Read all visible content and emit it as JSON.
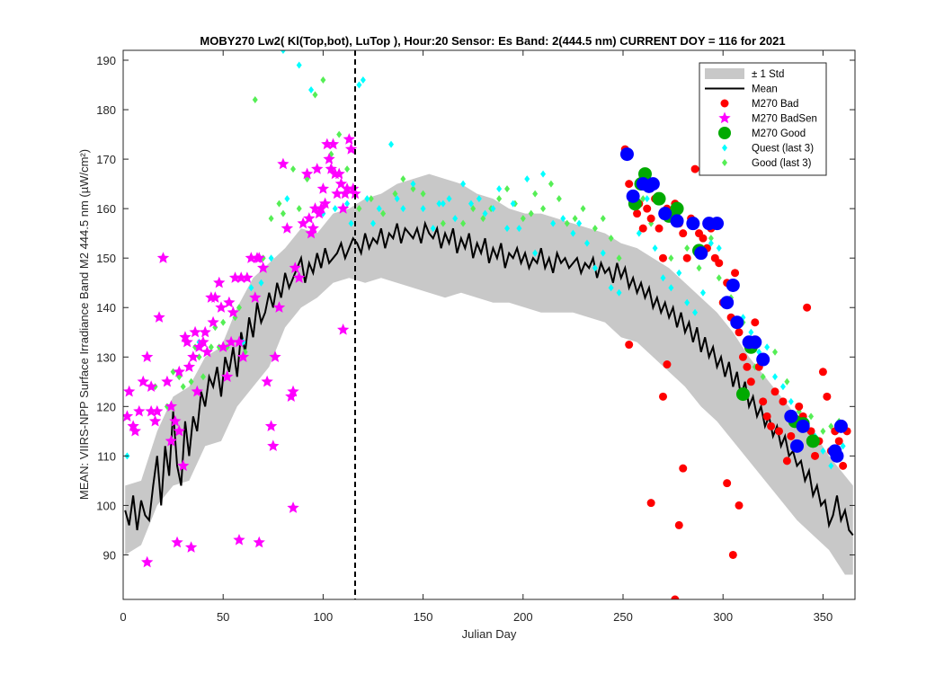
{
  "chart_data": {
    "type": "scatter",
    "title": "MOBY270   Lw2( Kl(Top,bot), LuTop ),   Hour:20 Sensor: Es Band: 2(444.5 nm)   CURRENT DOY = 116 for 2021",
    "xlabel": "Julian Day",
    "ylabel": "MEAN: VIIRS-NPP Surface Irradiance Band M2 444.5 nm (µW/cm²)",
    "xlim": [
      0,
      366
    ],
    "ylim": [
      81,
      192
    ],
    "xticks": [
      0,
      50,
      100,
      150,
      200,
      250,
      300,
      350
    ],
    "yticks": [
      90,
      100,
      110,
      120,
      130,
      140,
      150,
      160,
      170,
      180,
      190
    ],
    "grid": false,
    "legend_position": "top-right",
    "current_doy": 116,
    "colors": {
      "mean": "#000000",
      "std_band": "#c8c8c8",
      "m270_bad": "#ff0000",
      "m270_badsen": "#ff00ff",
      "m270_good": "#00aa00",
      "m270_good_alt": "#0000ff",
      "quest": "#00ffff",
      "good_last3": "#55ee55"
    },
    "legend": [
      {
        "label": "± 1 Std",
        "marker": "band"
      },
      {
        "label": "Mean",
        "marker": "line"
      },
      {
        "label": "M270 Bad",
        "marker": "dot-red"
      },
      {
        "label": "M270 BadSen",
        "marker": "star-magenta"
      },
      {
        "label": "M270 Good",
        "marker": "dot-green"
      },
      {
        "label": "Quest (last 3)",
        "marker": "diamond-cyan"
      },
      {
        "label": "Good (last 3)",
        "marker": "diamond-green"
      }
    ],
    "mean_series": {
      "name": "Mean",
      "x": [
        1,
        3,
        5,
        7,
        9,
        11,
        13,
        15,
        17,
        19,
        21,
        23,
        25,
        27,
        29,
        31,
        33,
        35,
        37,
        39,
        41,
        43,
        45,
        47,
        49,
        51,
        53,
        55,
        57,
        59,
        61,
        63,
        65,
        67,
        69,
        71,
        73,
        75,
        77,
        79,
        81,
        83,
        85,
        87,
        89,
        91,
        93,
        95,
        97,
        99,
        101,
        103,
        105,
        107,
        109,
        111,
        113,
        115,
        117,
        119,
        121,
        123,
        125,
        127,
        129,
        131,
        133,
        135,
        137,
        139,
        141,
        143,
        145,
        147,
        149,
        151,
        153,
        155,
        157,
        159,
        161,
        163,
        165,
        167,
        169,
        171,
        173,
        175,
        177,
        179,
        181,
        183,
        185,
        187,
        189,
        191,
        193,
        195,
        197,
        199,
        201,
        203,
        205,
        207,
        209,
        211,
        213,
        215,
        217,
        219,
        221,
        223,
        225,
        227,
        229,
        231,
        233,
        235,
        237,
        239,
        241,
        243,
        245,
        247,
        249,
        251,
        253,
        255,
        257,
        259,
        261,
        263,
        265,
        267,
        269,
        271,
        273,
        275,
        277,
        279,
        281,
        283,
        285,
        287,
        289,
        291,
        293,
        295,
        297,
        299,
        301,
        303,
        305,
        307,
        309,
        311,
        313,
        315,
        317,
        319,
        321,
        323,
        325,
        327,
        329,
        331,
        333,
        335,
        337,
        339,
        341,
        343,
        345,
        347,
        349,
        351,
        353,
        355,
        357,
        359,
        361,
        363,
        365
      ],
      "y": [
        99,
        96,
        102,
        95,
        101,
        98,
        97,
        104,
        110,
        100,
        112,
        106,
        119,
        108,
        104,
        117,
        110,
        118,
        115,
        123,
        120,
        126,
        124,
        128,
        122,
        130,
        127,
        132,
        126,
        135,
        131,
        138,
        134,
        141,
        137,
        139,
        143,
        140,
        145,
        142,
        147,
        144,
        146,
        148,
        150,
        145,
        149,
        147,
        151,
        148,
        152,
        149,
        150,
        151,
        153,
        150,
        152,
        154,
        153,
        151,
        155,
        152,
        154,
        153,
        156,
        152,
        155,
        154,
        157,
        153,
        156,
        155,
        154,
        156,
        153,
        157,
        155,
        154,
        156,
        152,
        155,
        153,
        156,
        151,
        154,
        152,
        155,
        150,
        153,
        151,
        154,
        149,
        152,
        150,
        153,
        148,
        151,
        150,
        152,
        149,
        151,
        148,
        150,
        149,
        152,
        148,
        150,
        147,
        151,
        149,
        150,
        148,
        149,
        150,
        147,
        149,
        148,
        150,
        146,
        149,
        147,
        148,
        145,
        149,
        146,
        148,
        144,
        146,
        143,
        145,
        142,
        144,
        140,
        142,
        139,
        141,
        138,
        140,
        136,
        139,
        135,
        137,
        133,
        136,
        131,
        134,
        130,
        132,
        128,
        130,
        126,
        129,
        124,
        127,
        122,
        125,
        120,
        122,
        118,
        120,
        116,
        118,
        114,
        116,
        112,
        114,
        110,
        111,
        108,
        109,
        105,
        107,
        102,
        104,
        100,
        101,
        96,
        98,
        102,
        97,
        99,
        95,
        94
      ]
    },
    "std_band": {
      "name": "± 1 Std",
      "x": [
        1,
        9,
        17,
        25,
        33,
        41,
        49,
        57,
        65,
        73,
        81,
        89,
        97,
        105,
        113,
        121,
        129,
        137,
        145,
        153,
        161,
        169,
        177,
        185,
        193,
        201,
        209,
        217,
        225,
        233,
        241,
        249,
        257,
        265,
        273,
        281,
        289,
        297,
        305,
        313,
        321,
        329,
        337,
        345,
        353,
        361,
        365
      ],
      "upper": [
        104,
        105,
        115,
        122,
        124,
        130,
        132,
        140,
        146,
        149,
        152,
        156,
        155,
        159,
        160,
        162,
        163,
        165,
        166,
        167,
        166,
        165,
        163,
        162,
        160,
        159,
        159,
        158,
        157,
        156,
        155,
        153,
        152,
        150,
        148,
        145,
        142,
        139,
        135,
        130,
        126,
        122,
        118,
        115,
        110,
        106,
        104
      ],
      "lower": [
        90,
        92,
        100,
        104,
        105,
        112,
        113,
        120,
        124,
        128,
        136,
        140,
        142,
        145,
        146,
        145,
        146,
        145,
        144,
        143,
        142,
        143,
        142,
        141,
        141,
        140,
        139,
        139,
        139,
        138,
        137,
        134,
        133,
        130,
        127,
        124,
        120,
        117,
        113,
        109,
        105,
        101,
        97,
        94,
        91,
        86,
        86
      ]
    },
    "m270_bad": {
      "name": "M270 Bad",
      "x": [
        251,
        253,
        255,
        257,
        258,
        260,
        262,
        264,
        266,
        268,
        270,
        272,
        274,
        276,
        278,
        280,
        282,
        284,
        286,
        288,
        290,
        292,
        294,
        296,
        298,
        300,
        302,
        304,
        306,
        308,
        310,
        312,
        314,
        316,
        318,
        320,
        322,
        324,
        326,
        328,
        330,
        332,
        334,
        336,
        338,
        340,
        342,
        344,
        346,
        348,
        350,
        352,
        354,
        356,
        358,
        360,
        362,
        253,
        264,
        270,
        272,
        276,
        278,
        280,
        302,
        305,
        308
      ],
      "y": [
        172,
        165,
        163,
        159,
        161,
        156,
        160,
        158,
        162,
        156,
        150,
        160,
        159,
        161,
        157,
        155,
        150,
        158,
        168,
        155,
        154,
        152,
        156,
        150,
        149,
        141,
        145,
        138,
        147,
        135,
        130,
        128,
        125,
        137,
        128,
        121,
        118,
        116,
        123,
        115,
        121,
        109,
        114,
        112,
        120,
        118,
        140,
        115,
        110,
        113,
        127,
        122,
        111,
        115,
        113,
        108,
        115,
        132.5,
        100.5,
        122,
        128.5,
        81,
        96,
        107.5,
        104.5,
        90,
        100
      ]
    },
    "m270_badsen": {
      "name": "M270 BadSen",
      "x": [
        2,
        3,
        5,
        6,
        8,
        10,
        12,
        14,
        16,
        17,
        18,
        20,
        22,
        24,
        26,
        27,
        28,
        30,
        31,
        32,
        33,
        35,
        36,
        37,
        38,
        40,
        41,
        42,
        44,
        45,
        46,
        48,
        49,
        50,
        52,
        53,
        54,
        55,
        56,
        58,
        59,
        60,
        62,
        64,
        66,
        67,
        68,
        70,
        72,
        74,
        75,
        76,
        78,
        80,
        82,
        84,
        85,
        86,
        88,
        90,
        92,
        93,
        94,
        95,
        96,
        97,
        98,
        99,
        100,
        101,
        102,
        103,
        104,
        105,
        106,
        107,
        108,
        109,
        110,
        111,
        112,
        113,
        114,
        115,
        116,
        12,
        14,
        24,
        28,
        34,
        58,
        68,
        85,
        110
      ],
      "y": [
        118,
        123,
        116,
        115,
        119,
        125,
        130,
        124,
        117,
        119,
        138,
        150,
        125,
        113,
        117,
        92.5,
        127,
        108,
        134,
        133,
        128,
        130,
        135,
        123,
        132,
        133,
        135,
        131,
        142,
        137,
        142,
        145,
        140,
        132,
        126,
        141,
        133,
        139,
        146,
        133,
        146,
        130,
        146,
        150,
        142,
        150,
        150,
        148,
        125,
        116,
        112,
        130,
        140,
        169,
        156,
        122,
        99.5,
        148,
        146,
        157,
        167,
        158,
        155,
        156,
        160,
        168,
        159,
        160,
        164,
        161,
        173,
        170,
        168,
        173,
        167,
        163,
        167,
        165,
        160,
        163,
        164,
        174,
        172,
        164,
        163,
        88.5,
        119,
        120,
        115,
        91.5,
        93,
        92.5,
        123,
        135.5
      ]
    },
    "m270_good": {
      "name": "M270 Good",
      "x": [
        252,
        256,
        258,
        260,
        262,
        270,
        273,
        276,
        278,
        283,
        286,
        289,
        291,
        295,
        298,
        302,
        305,
        308,
        312,
        316,
        320,
        324,
        330,
        334,
        336,
        338,
        341,
        343,
        346,
        351,
        356
      ],
      "y": [
        170.5,
        165,
        162,
        166.5,
        161,
        159,
        155,
        158.5,
        162,
        157,
        152,
        145,
        150,
        155,
        157,
        140,
        145,
        128,
        134,
        132,
        123,
        121,
        130,
        118,
        112,
        117,
        115,
        113,
        115.5,
        110.5,
        102.5
      ]
    },
    "m270_good_alt": {
      "name": "M270 Good",
      "x": [
        252,
        255,
        260,
        263,
        265,
        271,
        277,
        285,
        289,
        293,
        297,
        302,
        305,
        307,
        313,
        316,
        320,
        334,
        337,
        340,
        356,
        357,
        359
      ],
      "y": [
        171,
        162.5,
        165,
        164.5,
        165,
        159,
        157.5,
        157,
        151,
        157,
        157,
        141,
        144.5,
        137,
        133,
        133,
        129.5,
        118,
        112,
        116,
        111,
        110,
        116
      ]
    },
    "m270_good_green": {
      "name": "M270 Good",
      "x": [
        256,
        259,
        261,
        268,
        273,
        277,
        288,
        310,
        314,
        336,
        340,
        345
      ],
      "y": [
        161,
        165,
        167,
        162,
        158.5,
        160,
        151.5,
        122.5,
        132,
        117,
        116.5,
        113
      ]
    },
    "quest_last3": {
      "name": "Quest (last 3)",
      "x": [
        2,
        38,
        60,
        64,
        69,
        74,
        80,
        82,
        88,
        94,
        100,
        106,
        112,
        114,
        118,
        120,
        122,
        125,
        128,
        134,
        137,
        140,
        145,
        150,
        155,
        158,
        160,
        163,
        166,
        170,
        174,
        178,
        181,
        185,
        188,
        192,
        195,
        198,
        202,
        206,
        210,
        215,
        220,
        225,
        228,
        232,
        236,
        240,
        244,
        248,
        252,
        256,
        258,
        262,
        266,
        270,
        274,
        278,
        282,
        286,
        290,
        294,
        298,
        302,
        306,
        310,
        314,
        318,
        322,
        326,
        330,
        334,
        338,
        342,
        346,
        350,
        354,
        360
      ],
      "y": [
        110,
        133,
        133,
        144,
        145,
        150,
        192,
        162,
        189,
        184,
        159,
        160,
        161,
        157,
        185,
        186,
        162,
        157,
        160,
        173,
        162,
        160,
        165,
        160,
        156,
        161,
        161,
        162,
        158,
        165,
        161,
        162,
        159,
        160,
        164,
        156,
        161,
        156,
        166,
        151,
        167,
        157,
        158,
        155,
        157,
        153,
        148,
        151,
        144,
        143,
        170.5,
        160,
        155,
        162,
        152,
        146,
        144,
        147,
        141,
        139,
        143,
        153,
        152,
        141,
        147,
        138,
        135,
        131,
        132,
        126,
        124,
        121,
        120,
        117,
        114,
        111,
        108,
        112
      ]
    },
    "good_last3": {
      "name": "Good (last 3)",
      "x": [
        16,
        22,
        25,
        28,
        30,
        34,
        36,
        38,
        40,
        44,
        46,
        48,
        50,
        52,
        56,
        58,
        61,
        62,
        66,
        68,
        70,
        74,
        78,
        80,
        85,
        88,
        92,
        96,
        100,
        104,
        108,
        112,
        118,
        124,
        130,
        136,
        140,
        145,
        150,
        160,
        170,
        175,
        180,
        184,
        188,
        192,
        196,
        200,
        204,
        206,
        210,
        214,
        218,
        222,
        226,
        230,
        236,
        240,
        244,
        248,
        256,
        260,
        264,
        268,
        274,
        278,
        282,
        288,
        294,
        298,
        304,
        310,
        316,
        320,
        326,
        332,
        338,
        344,
        350,
        354,
        358
      ],
      "y": [
        124,
        120,
        127,
        126,
        124,
        125,
        132,
        130,
        126,
        132,
        136,
        132,
        137,
        132,
        138,
        140,
        131,
        146,
        182,
        150,
        150,
        158,
        161,
        159,
        168,
        160,
        166,
        183,
        186,
        171,
        175,
        168,
        160,
        162,
        159,
        163,
        166,
        164,
        163,
        157,
        157,
        160,
        158,
        160,
        162,
        164,
        161,
        158,
        159,
        163,
        160,
        165,
        162,
        157,
        158,
        160,
        156,
        158,
        154,
        150,
        160,
        162,
        157,
        162,
        150,
        158,
        152,
        148,
        154,
        146,
        142,
        137,
        128,
        126,
        131,
        125,
        119,
        118,
        115,
        116,
        117
      ]
    }
  }
}
